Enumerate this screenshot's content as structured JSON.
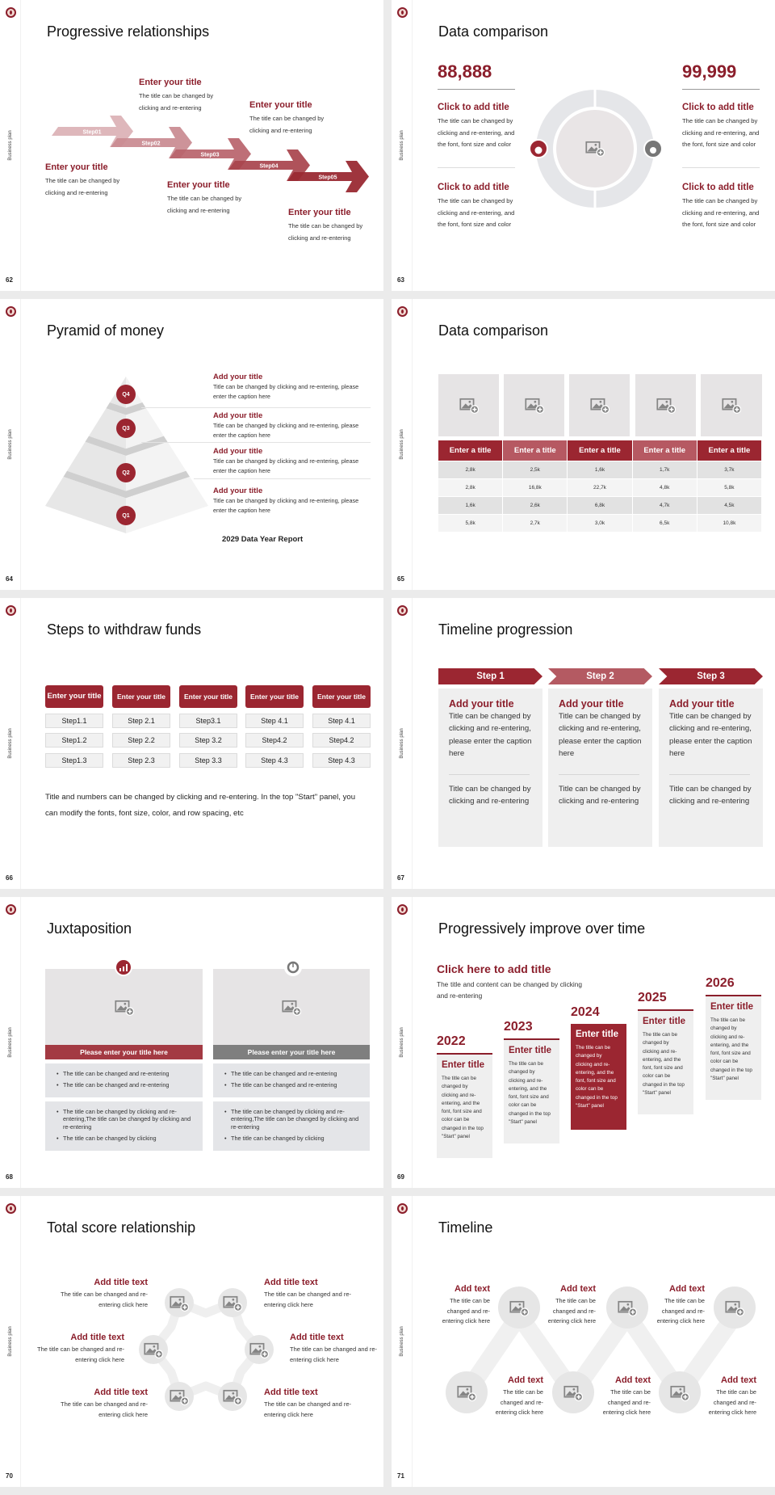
{
  "sidebar_label": "Business plan",
  "colors": {
    "accent": "#8b1e2b",
    "fill_red": "#9b2631",
    "fill_red_light": "#b65962",
    "panel_gray": "#efefef",
    "gray_header": "#7f7f7f"
  },
  "s62": {
    "page": "62",
    "title": "Progressive relationships",
    "steps": [
      "Step01",
      "Step02",
      "Step03",
      "Step04",
      "Step05"
    ],
    "items": [
      {
        "title": "Enter your title",
        "body": "The title can be changed by clicking and re-entering"
      },
      {
        "title": "Enter your title",
        "body": "The title can be changed by clicking and re-entering"
      },
      {
        "title": "Enter your title",
        "body": "The title can be changed by clicking and re-entering"
      },
      {
        "title": "Enter your title",
        "body": "The title can be changed by clicking and re-entering"
      },
      {
        "title": "Enter your title",
        "body": "The title can be changed by clicking and re-entering"
      }
    ]
  },
  "s63": {
    "page": "63",
    "title": "Data comparison",
    "left_value": "88,888",
    "right_value": "99,999",
    "blocks": [
      {
        "title": "Click to add title",
        "body": "The title can be changed by clicking and re-entering, and the font, font size and color"
      },
      {
        "title": "Click to add title",
        "body": "The title can be changed by clicking and re-entering, and the font, font size and color"
      },
      {
        "title": "Click to add title",
        "body": "The title can be changed by clicking and re-entering, and the font, font size and color"
      },
      {
        "title": "Click to add title",
        "body": "The title can be changed by clicking and re-entering, and the font, font size and color"
      }
    ],
    "icons": [
      "money-hand-icon",
      "money-bag-icon"
    ]
  },
  "s64": {
    "page": "64",
    "title": "Pyramid of money",
    "levels": [
      "Q4",
      "Q3",
      "Q2",
      "Q1"
    ],
    "items": [
      {
        "title": "Add your title",
        "body": "Title can be changed by clicking and re-entering, please enter the caption here"
      },
      {
        "title": "Add your title",
        "body": "Title can be changed by clicking and re-entering, please enter the caption here"
      },
      {
        "title": "Add your title",
        "body": "Title can be changed by clicking and re-entering, please enter the caption here"
      },
      {
        "title": "Add your title",
        "body": "Title can be changed by clicking and re-entering, please enter the caption here"
      }
    ],
    "footer": "2029 Data Year Report"
  },
  "s65": {
    "page": "65",
    "title": "Data comparison",
    "headers": [
      "Enter a title",
      "Enter a title",
      "Enter a title",
      "Enter a title",
      "Enter a title"
    ],
    "rows": [
      [
        "2,8k",
        "2,5k",
        "1,6k",
        "1,7k",
        "3,7k"
      ],
      [
        "2,8k",
        "16,8k",
        "22,7k",
        "4,8k",
        "5,8k"
      ],
      [
        "1,6k",
        "2,6k",
        "6,8k",
        "4,7k",
        "4,5k"
      ],
      [
        "5,8k",
        "2,7k",
        "3,0k",
        "6,5k",
        "10,8k"
      ]
    ]
  },
  "s66": {
    "page": "66",
    "title": "Steps to withdraw funds",
    "columns": [
      {
        "header": "Enter your title",
        "steps": [
          "Step1.1",
          "Step1.2",
          "Step1.3"
        ]
      },
      {
        "header": "Enter your title",
        "steps": [
          "Step 2.1",
          "Step 2.2",
          "Step 2.3"
        ]
      },
      {
        "header": "Enter your title",
        "steps": [
          "Step3.1",
          "Step 3.2",
          "Step 3.3"
        ]
      },
      {
        "header": "Enter your title",
        "steps": [
          "Step 4.1",
          "Step4.2",
          "Step 4.3"
        ]
      },
      {
        "header": "Enter your title",
        "steps": [
          "Step 4.1",
          "Step4.2",
          "Step 4.3"
        ]
      }
    ],
    "note": "Title and numbers can be changed by clicking and re-entering. In the top \"Start\" panel, you can modify the fonts, font size, color, and row spacing, etc"
  },
  "s67": {
    "page": "67",
    "title": "Timeline progression",
    "columns": [
      {
        "step": "Step 1",
        "title": "Add your title",
        "body": "Title can be changed by clicking and re-entering, please enter the caption here",
        "body2": "Title can be changed by clicking and re-entering"
      },
      {
        "step": "Step 2",
        "title": "Add your title",
        "body": "Title can be changed by clicking and re-entering, please enter the caption here",
        "body2": "Title can be changed by clicking and re-entering"
      },
      {
        "step": "Step 3",
        "title": "Add your title",
        "body": "Title can be changed by clicking and re-entering, please enter the caption here",
        "body2": "Title can be changed by clicking and re-entering"
      }
    ]
  },
  "s68": {
    "page": "68",
    "title": "Juxtaposition",
    "cards": [
      {
        "icon": "bar-chart-icon",
        "header": "Please enter your title here",
        "list1": [
          "The title can be changed and re-entering",
          "The title can be changed and re-entering"
        ],
        "list2": [
          "The title can be changed by clicking and re-entering,The title can be changed by clicking and re-entering",
          "The title can be changed by clicking"
        ]
      },
      {
        "icon": "pie-chart-icon",
        "header": "Please enter your title here",
        "list1": [
          "The title can be changed and re-entering",
          "The title can be changed and re-entering"
        ],
        "list2": [
          "The title can be changed by clicking and re-entering,The title can be changed by clicking and re-entering",
          "The title can be changed by clicking"
        ]
      }
    ]
  },
  "s69": {
    "page": "69",
    "title": "Progressively improve over time",
    "headline": "Click here to add title",
    "intro": "The title and content can be changed by clicking and re-entering",
    "years": [
      {
        "year": "2022",
        "title": "Enter title",
        "body": "The title can be changed by clicking and re-entering, and the font, font size and color can be changed in the top \"Start\" panel"
      },
      {
        "year": "2023",
        "title": "Enter title",
        "body": "The title can be changed by clicking and re-entering, and the font, font size and color can be changed in the top \"Start\" panel"
      },
      {
        "year": "2024",
        "title": "Enter title",
        "body": "The title can be changed by clicking and re-entering, and the font, font size and color can be changed in the top \"Start\" panel"
      },
      {
        "year": "2025",
        "title": "Enter title",
        "body": "The title can be changed by clicking and re-entering, and the font, font size and color can be changed in the top \"Start\" panel"
      },
      {
        "year": "2026",
        "title": "Enter title",
        "body": "The title can be changed by clicking and re-entering, and the font, font size and color can be changed in the top \"Start\" panel"
      }
    ]
  },
  "s70": {
    "page": "70",
    "title": "Total score relationship",
    "items": [
      {
        "title": "Add title text",
        "body": "The title can be changed and re-entering click here"
      },
      {
        "title": "Add title text",
        "body": "The title can be changed and re-entering click here"
      },
      {
        "title": "Add title text",
        "body": "The title can be changed and re-entering click here"
      },
      {
        "title": "Add title text",
        "body": "The title can be changed and re-entering click here"
      },
      {
        "title": "Add title text",
        "body": "The title can be changed and re-entering click here"
      },
      {
        "title": "Add title text",
        "body": "The title can be changed and re-entering click here"
      }
    ]
  },
  "s71": {
    "page": "71",
    "title": "Timeline",
    "items": [
      {
        "title": "Add text",
        "body": "The title can be changed and re-entering click here"
      },
      {
        "title": "Add text",
        "body": "The title can be changed and re-entering click here"
      },
      {
        "title": "Add text",
        "body": "The title can be changed and re-entering click here"
      },
      {
        "title": "Add text",
        "body": "The title can be changed and re-entering click here"
      },
      {
        "title": "Add text",
        "body": "The title can be changed and re-entering click here"
      },
      {
        "title": "Add text",
        "body": "The title can be changed and re-entering click here"
      }
    ]
  }
}
